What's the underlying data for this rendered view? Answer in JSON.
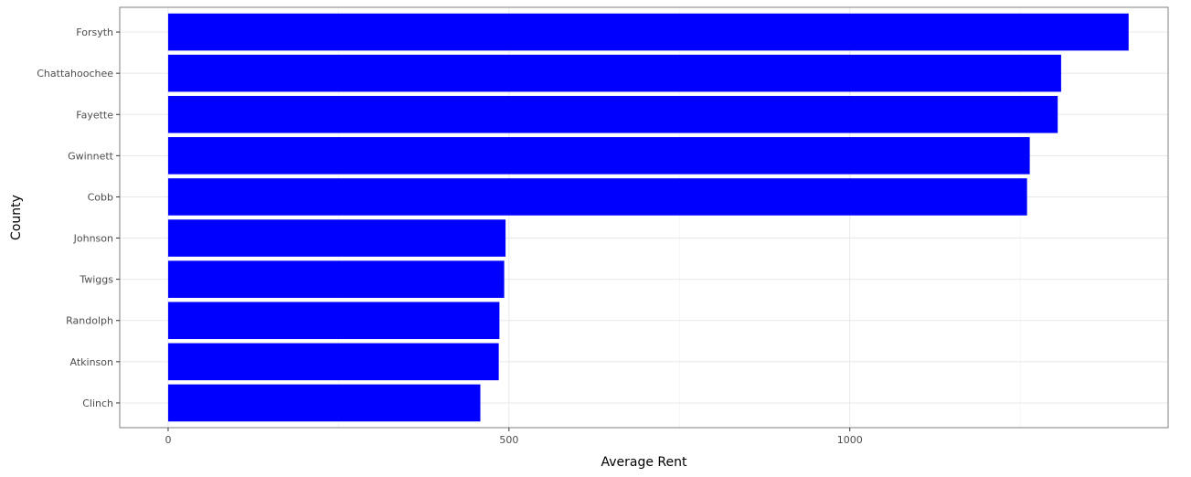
{
  "chart_data": {
    "type": "bar",
    "orientation": "horizontal",
    "title": "",
    "xlabel": "Average Rent",
    "ylabel": "County",
    "categories": [
      "Forsyth",
      "Chattahoochee",
      "Fayette",
      "Gwinnett",
      "Cobb",
      "Johnson",
      "Twiggs",
      "Randolph",
      "Atkinson",
      "Clinch"
    ],
    "values": [
      1409,
      1310,
      1305,
      1264,
      1260,
      495,
      493,
      486,
      485,
      458
    ],
    "xlim": [
      -71,
      1467
    ],
    "xticks": [
      0,
      500,
      1000
    ],
    "xtick_labels": [
      "0",
      "500",
      "1000"
    ],
    "bar_color": "#0000ff",
    "grid": true,
    "legend": "none"
  }
}
